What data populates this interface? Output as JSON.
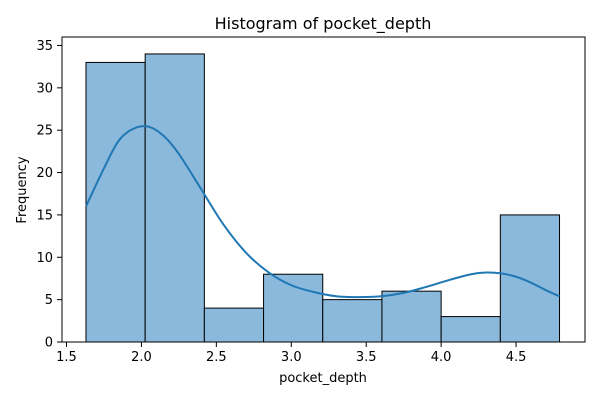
{
  "chart_data": {
    "type": "bar",
    "title": "Histogram of pocket_depth",
    "xlabel": "pocket_depth",
    "ylabel": "Frequency",
    "xlim": [
      1.47,
      4.96
    ],
    "ylim": [
      0,
      36
    ],
    "xticks": [
      1.5,
      2.0,
      2.5,
      3.0,
      3.5,
      4.0,
      4.5
    ],
    "xtick_labels": [
      "1.5",
      "2.0",
      "2.5",
      "3.0",
      "3.5",
      "4.0",
      "4.5"
    ],
    "yticks": [
      0,
      5,
      10,
      15,
      20,
      25,
      30,
      35
    ],
    "ytick_labels": [
      "0",
      "5",
      "10",
      "15",
      "20",
      "25",
      "30",
      "35"
    ],
    "bins": [
      {
        "x0": 1.63,
        "x1": 2.025,
        "count": 33
      },
      {
        "x0": 2.025,
        "x1": 2.42,
        "count": 34
      },
      {
        "x0": 2.42,
        "x1": 2.815,
        "count": 4
      },
      {
        "x0": 2.815,
        "x1": 3.21,
        "count": 8
      },
      {
        "x0": 3.21,
        "x1": 3.605,
        "count": 5
      },
      {
        "x0": 3.605,
        "x1": 4.0,
        "count": 6
      },
      {
        "x0": 4.0,
        "x1": 4.395,
        "count": 3
      },
      {
        "x0": 4.395,
        "x1": 4.79,
        "count": 15
      }
    ],
    "kde": {
      "x": [
        1.63,
        1.75,
        1.85,
        1.95,
        2.05,
        2.15,
        2.25,
        2.4,
        2.55,
        2.7,
        2.85,
        3.0,
        3.15,
        3.3,
        3.45,
        3.6,
        3.75,
        3.9,
        4.05,
        4.2,
        4.3,
        4.4,
        4.5,
        4.6,
        4.7,
        4.79
      ],
      "y": [
        16.0,
        20.5,
        23.8,
        25.2,
        25.4,
        24.3,
        22.2,
        18.0,
        13.8,
        10.5,
        8.2,
        6.7,
        5.9,
        5.4,
        5.3,
        5.4,
        5.8,
        6.5,
        7.3,
        8.0,
        8.2,
        8.1,
        7.7,
        7.0,
        6.1,
        5.4
      ]
    },
    "grid": false,
    "legend": "none",
    "colors": {
      "bar_fill": "#8bb9dc",
      "bar_edge": "#000000",
      "kde_line": "#1f77b4"
    }
  }
}
